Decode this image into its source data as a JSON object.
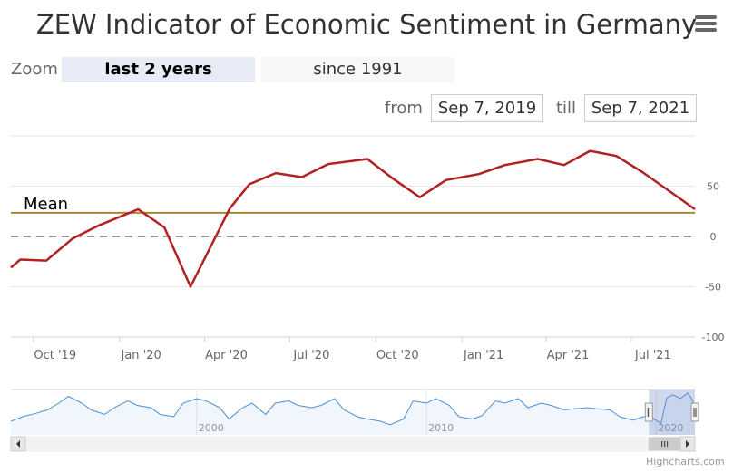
{
  "header": {
    "title": "ZEW Indicator of Economic Sentiment in Germany",
    "menu_icon": "hamburger-menu-icon"
  },
  "range_selector": {
    "zoom_label": "Zoom",
    "buttons": [
      "last 2 years",
      "since 1991"
    ],
    "selected": "last 2 years",
    "from_label": "from",
    "from_value": "Sep 7, 2019",
    "till_label": "till",
    "till_value": "Sep 7, 2021"
  },
  "chart_data": {
    "type": "line",
    "title": "ZEW Indicator of Economic Sentiment in Germany",
    "x_tick_labels": [
      "Oct '19",
      "Jan '20",
      "Apr '20",
      "Jul '20",
      "Oct '20",
      "Jan '21",
      "Apr '21",
      "Jul '21"
    ],
    "x_tick_dates": [
      "2019-10-01",
      "2020-01-01",
      "2020-04-01",
      "2020-07-01",
      "2020-10-01",
      "2021-01-01",
      "2021-04-01",
      "2021-07-01"
    ],
    "y_tick_labels": [
      "50",
      "0",
      "-50",
      "-100"
    ],
    "y_ticks": [
      50,
      0,
      -50,
      -100
    ],
    "ylim": [
      -100,
      100
    ],
    "xlim": [
      "2019-09-07",
      "2021-09-07"
    ],
    "grid": true,
    "series": [
      {
        "color": "#b22222",
        "x": [
          "2019-09-07",
          "2019-09-17",
          "2019-10-15",
          "2019-11-12",
          "2019-12-10",
          "2020-01-21",
          "2020-02-18",
          "2020-03-17",
          "2020-04-28",
          "2020-05-19",
          "2020-06-16",
          "2020-07-14",
          "2020-08-11",
          "2020-09-22",
          "2020-10-20",
          "2020-11-17",
          "2020-12-15",
          "2021-01-19",
          "2021-02-16",
          "2021-03-23",
          "2021-04-20",
          "2021-05-18",
          "2021-06-15",
          "2021-07-13",
          "2021-08-17",
          "2021-09-07"
        ],
        "y": [
          -31,
          -23,
          -24,
          -2,
          11,
          27,
          9,
          -50,
          28,
          52,
          63,
          59,
          72,
          77,
          57,
          39,
          56,
          62,
          71,
          77,
          71,
          85,
          80,
          64,
          41,
          27
        ]
      }
    ],
    "plot_lines": [
      {
        "label": "Mean",
        "value": 23.5,
        "color": "#a58b2c",
        "style": "solid"
      },
      {
        "label": "",
        "value": 0,
        "color": "#999999",
        "style": "dashed"
      }
    ]
  },
  "navigator": {
    "year_labels": [
      "2000",
      "2010",
      "2020"
    ],
    "year_dates": [
      "2000-01-01",
      "2010-01-01",
      "2020-01-01"
    ],
    "start": "1991-12-01",
    "end": "2021-09-07",
    "series": [
      {
        "color": "#4a90d9",
        "x": [
          "1991-12-01",
          "1992-06-01",
          "1993-01-01",
          "1993-07-01",
          "1994-01-01",
          "1994-06-01",
          "1995-01-01",
          "1995-06-01",
          "1996-01-01",
          "1996-06-01",
          "1997-01-01",
          "1997-06-01",
          "1998-01-01",
          "1998-06-01",
          "1999-01-01",
          "1999-06-01",
          "2000-01-01",
          "2000-06-01",
          "2001-01-01",
          "2001-06-01",
          "2002-01-01",
          "2002-06-01",
          "2003-01-01",
          "2003-06-01",
          "2004-01-01",
          "2004-06-01",
          "2005-01-01",
          "2005-06-01",
          "2006-01-01",
          "2006-06-01",
          "2007-01-01",
          "2007-06-01",
          "2008-01-01",
          "2008-06-01",
          "2009-01-01",
          "2009-06-01",
          "2010-01-01",
          "2010-06-01",
          "2011-01-01",
          "2011-06-01",
          "2012-01-01",
          "2012-06-01",
          "2013-01-01",
          "2013-06-01",
          "2014-01-01",
          "2014-06-01",
          "2015-01-01",
          "2015-06-01",
          "2016-01-01",
          "2016-06-01",
          "2017-01-01",
          "2017-06-01",
          "2018-01-01",
          "2018-06-01",
          "2019-01-01",
          "2019-06-01",
          "2019-10-15",
          "2020-03-17",
          "2020-06-16",
          "2020-09-22",
          "2021-01-19",
          "2021-05-18",
          "2021-07-13",
          "2021-09-07"
        ],
        "y": [
          -40,
          -20,
          -5,
          10,
          40,
          70,
          40,
          10,
          -10,
          20,
          50,
          30,
          20,
          -10,
          -20,
          40,
          60,
          50,
          20,
          -30,
          20,
          40,
          -10,
          40,
          50,
          30,
          20,
          30,
          60,
          10,
          -20,
          -30,
          -40,
          -55,
          -30,
          50,
          40,
          60,
          30,
          -20,
          -30,
          -15,
          50,
          40,
          60,
          20,
          40,
          30,
          10,
          15,
          20,
          15,
          10,
          -20,
          -35,
          -20,
          -22,
          -49,
          63,
          77,
          61,
          84,
          62,
          27
        ]
      }
    ]
  }
}
